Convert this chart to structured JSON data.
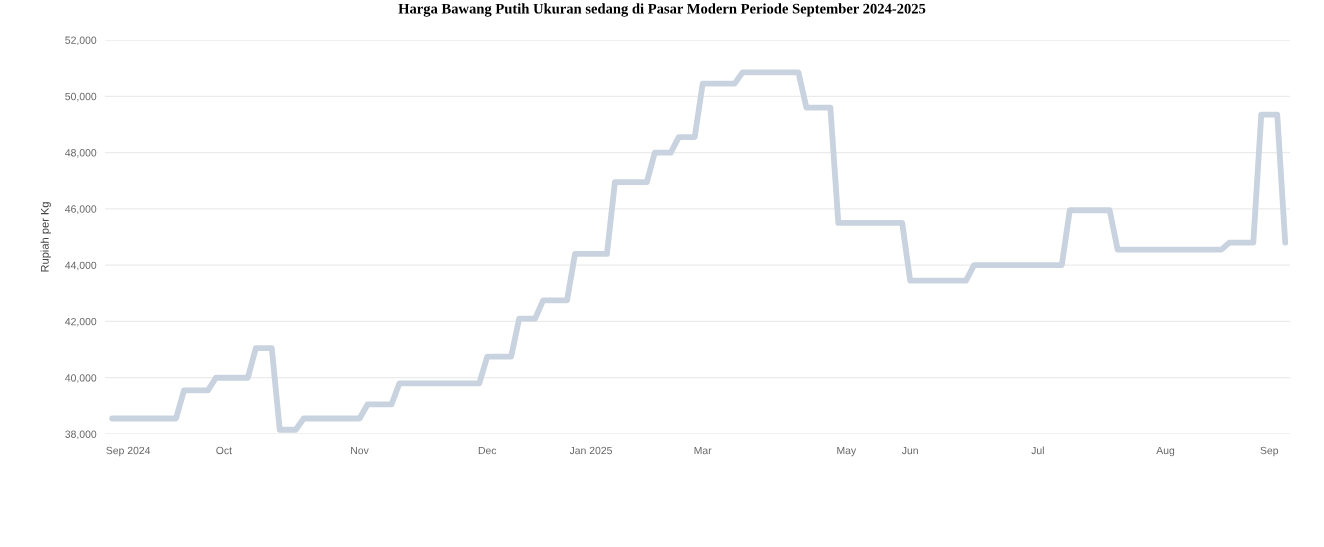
{
  "chart_data": {
    "type": "line",
    "title": "Harga Bawang Putih Ukuran sedang di Pasar Modern Periode September 2024-2025",
    "ylabel": "Rupiah per Kg",
    "categories": [
      null,
      null,
      "Sep 2024",
      null,
      null,
      null,
      null,
      null,
      null,
      null,
      null,
      null,
      null,
      null,
      "Oct",
      null,
      null,
      null,
      null,
      null,
      null,
      null,
      null,
      null,
      null,
      null,
      null,
      null,
      null,
      null,
      null,
      "Nov",
      null,
      null,
      null,
      null,
      null,
      null,
      null,
      null,
      null,
      null,
      null,
      null,
      null,
      null,
      null,
      "Dec",
      null,
      null,
      null,
      null,
      null,
      null,
      null,
      null,
      null,
      null,
      null,
      null,
      "Jan 2025",
      null,
      null,
      null,
      null,
      null,
      null,
      null,
      null,
      null,
      null,
      null,
      null,
      null,
      "Mar",
      null,
      null,
      null,
      null,
      null,
      null,
      null,
      null,
      null,
      null,
      null,
      null,
      null,
      null,
      null,
      null,
      null,
      "May",
      null,
      null,
      null,
      null,
      null,
      null,
      null,
      "Jun",
      null,
      null,
      null,
      null,
      null,
      null,
      null,
      null,
      null,
      null,
      null,
      null,
      null,
      null,
      null,
      "Jul",
      null,
      null,
      null,
      null,
      null,
      null,
      null,
      null,
      null,
      null,
      null,
      null,
      null,
      null,
      null,
      "Aug",
      null,
      null,
      null,
      null,
      null,
      null,
      null,
      null,
      null,
      null,
      null,
      null,
      "Sep",
      null,
      null
    ],
    "series": [
      {
        "color": "#c9d3e0",
        "values": [
          38550,
          38550,
          38550,
          38550,
          38550,
          38550,
          38550,
          38550,
          38550,
          39550,
          39550,
          39550,
          39550,
          40000,
          40000,
          40000,
          40000,
          40000,
          41050,
          41050,
          41050,
          38150,
          38150,
          38150,
          38550,
          38550,
          38550,
          38550,
          38550,
          38550,
          38550,
          38550,
          39050,
          39050,
          39050,
          39050,
          39800,
          39800,
          39800,
          39800,
          39800,
          39800,
          39800,
          39800,
          39800,
          39800,
          39800,
          40750,
          40750,
          40750,
          40750,
          42100,
          42100,
          42100,
          42750,
          42750,
          42750,
          42750,
          44400,
          44400,
          44400,
          44400,
          44400,
          46950,
          46950,
          46950,
          46950,
          46950,
          48000,
          48000,
          48000,
          48550,
          48550,
          48550,
          50450,
          50450,
          50450,
          50450,
          50450,
          50850,
          50850,
          50850,
          50850,
          50850,
          50850,
          50850,
          50850,
          49600,
          49600,
          49600,
          49600,
          45500,
          45500,
          45500,
          45500,
          45500,
          45500,
          45500,
          45500,
          45500,
          43450,
          43450,
          43450,
          43450,
          43450,
          43450,
          43450,
          43450,
          44000,
          44000,
          44000,
          44000,
          44000,
          44000,
          44000,
          44000,
          44000,
          44000,
          44000,
          44000,
          45950,
          45950,
          45950,
          45950,
          45950,
          45950,
          44550,
          44550,
          44550,
          44550,
          44550,
          44550,
          44550,
          44550,
          44550,
          44550,
          44550,
          44550,
          44550,
          44550,
          44800,
          44800,
          44800,
          44800,
          49350,
          49350,
          49350,
          44800
        ]
      }
    ],
    "ylim": [
      38000,
      52000
    ],
    "yticks": [
      {
        "value": 38000,
        "label": "38,000"
      },
      {
        "value": 40000,
        "label": "40,000"
      },
      {
        "value": 42000,
        "label": "42,000"
      },
      {
        "value": 44000,
        "label": "44,000"
      },
      {
        "value": 46000,
        "label": "46,000"
      },
      {
        "value": 48000,
        "label": "48,000"
      },
      {
        "value": 50000,
        "label": "50,000"
      },
      {
        "value": 52000,
        "label": "52,000"
      }
    ],
    "grid": "y",
    "marker": "none",
    "line_style": "solid"
  }
}
